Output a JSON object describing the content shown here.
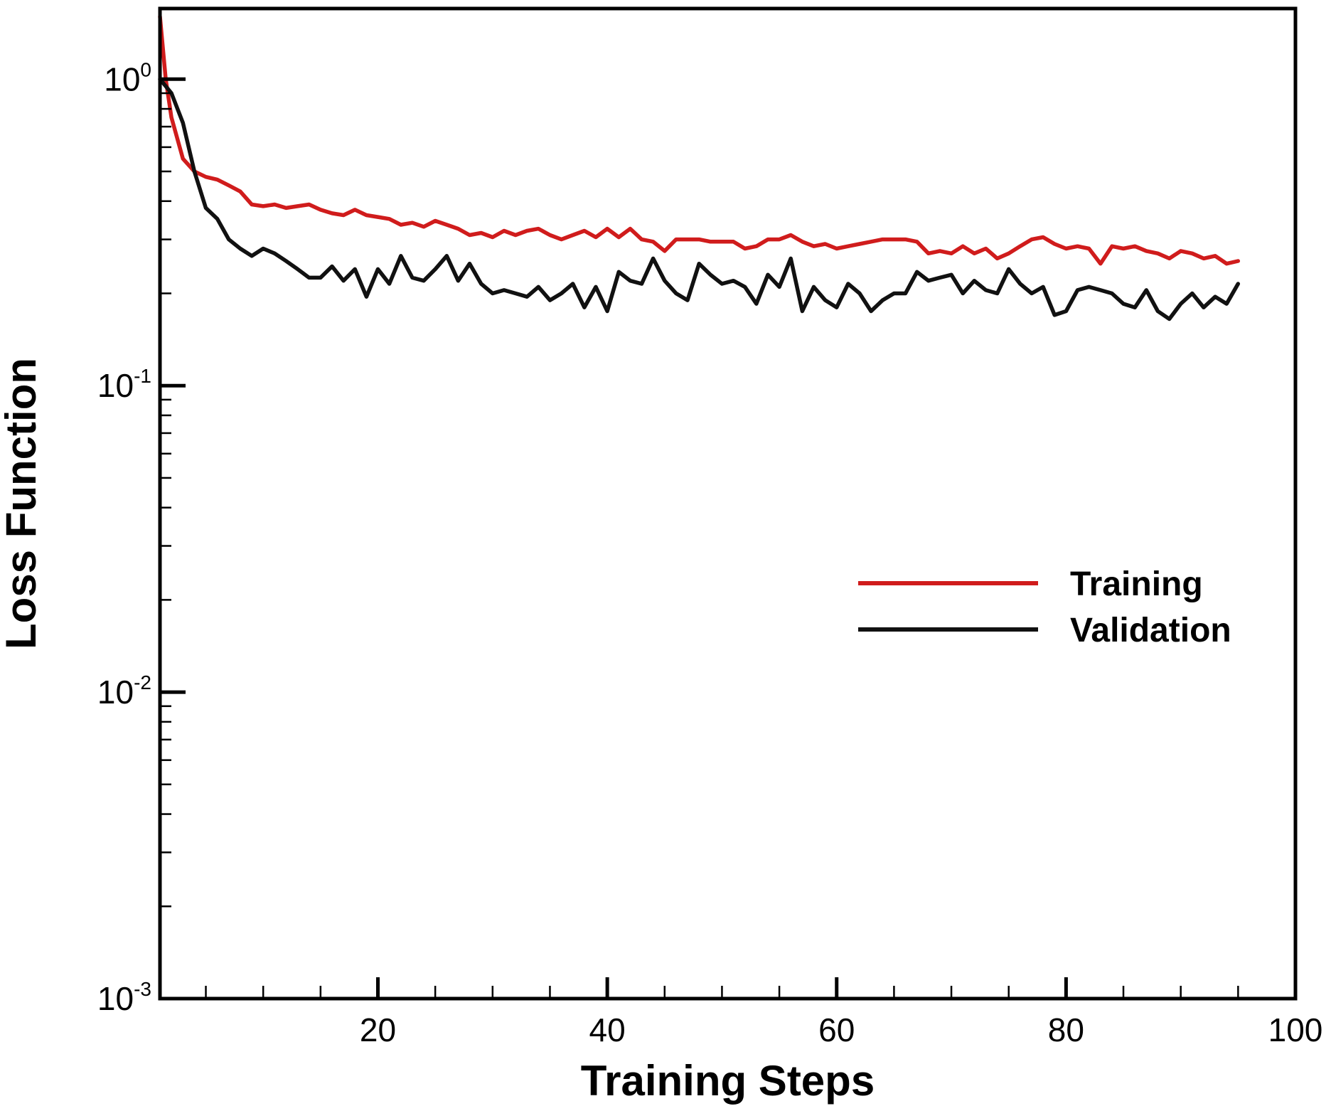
{
  "chart_data": {
    "type": "line",
    "xlabel": "Training Steps",
    "ylabel": "Loss Function",
    "xlim": [
      1,
      100
    ],
    "ylim": [
      0.001,
      1.7
    ],
    "y_scale": "log",
    "grid": false,
    "legend_position": "center-right",
    "x_ticks": [
      {
        "value": 20,
        "label": "20"
      },
      {
        "value": 40,
        "label": "40"
      },
      {
        "value": 60,
        "label": "60"
      },
      {
        "value": 80,
        "label": "80"
      },
      {
        "value": 100,
        "label": "100"
      }
    ],
    "y_ticks": [
      {
        "value": 1,
        "base": "10",
        "exp": "0"
      },
      {
        "value": 0.1,
        "base": "10",
        "exp": "-1"
      },
      {
        "value": 0.01,
        "base": "10",
        "exp": "-2"
      },
      {
        "value": 0.001,
        "base": "10",
        "exp": "-3"
      }
    ],
    "series": [
      {
        "name": "Training",
        "color": "#d01c1c",
        "x": [
          1,
          1.5,
          2,
          3,
          4,
          5,
          6,
          7,
          8,
          9,
          10,
          11,
          12,
          13,
          14,
          15,
          16,
          17,
          18,
          19,
          20,
          21,
          22,
          23,
          24,
          25,
          26,
          27,
          28,
          29,
          30,
          31,
          32,
          33,
          34,
          35,
          36,
          37,
          38,
          39,
          40,
          41,
          42,
          43,
          44,
          45,
          46,
          47,
          48,
          49,
          50,
          51,
          52,
          53,
          54,
          55,
          56,
          57,
          58,
          59,
          60,
          61,
          62,
          63,
          64,
          65,
          66,
          67,
          68,
          69,
          70,
          71,
          72,
          73,
          74,
          75,
          76,
          77,
          78,
          79,
          80,
          81,
          82,
          83,
          84,
          85,
          86,
          87,
          88,
          89,
          90,
          91,
          92,
          93,
          94,
          95
        ],
        "y": [
          1.6,
          1.0,
          0.75,
          0.55,
          0.5,
          0.48,
          0.47,
          0.45,
          0.43,
          0.39,
          0.385,
          0.39,
          0.38,
          0.385,
          0.39,
          0.375,
          0.365,
          0.36,
          0.375,
          0.36,
          0.355,
          0.35,
          0.335,
          0.34,
          0.33,
          0.345,
          0.335,
          0.325,
          0.31,
          0.315,
          0.305,
          0.32,
          0.31,
          0.32,
          0.325,
          0.31,
          0.3,
          0.31,
          0.32,
          0.305,
          0.325,
          0.305,
          0.325,
          0.3,
          0.295,
          0.275,
          0.3,
          0.3,
          0.3,
          0.295,
          0.295,
          0.295,
          0.28,
          0.285,
          0.3,
          0.3,
          0.31,
          0.295,
          0.285,
          0.29,
          0.28,
          0.285,
          0.29,
          0.295,
          0.3,
          0.3,
          0.3,
          0.295,
          0.27,
          0.275,
          0.27,
          0.285,
          0.27,
          0.28,
          0.26,
          0.27,
          0.285,
          0.3,
          0.305,
          0.29,
          0.28,
          0.285,
          0.28,
          0.25,
          0.285,
          0.28,
          0.285,
          0.275,
          0.27,
          0.26,
          0.275,
          0.27,
          0.26,
          0.265,
          0.25,
          0.255
        ]
      },
      {
        "name": "Validation",
        "color": "#111111",
        "x": [
          1,
          2,
          3,
          4,
          5,
          6,
          7,
          8,
          9,
          10,
          11,
          12,
          13,
          14,
          15,
          16,
          17,
          18,
          19,
          20,
          21,
          22,
          23,
          24,
          25,
          26,
          27,
          28,
          29,
          30,
          31,
          32,
          33,
          34,
          35,
          36,
          37,
          38,
          39,
          40,
          41,
          42,
          43,
          44,
          45,
          46,
          47,
          48,
          49,
          50,
          51,
          52,
          53,
          54,
          55,
          56,
          57,
          58,
          59,
          60,
          61,
          62,
          63,
          64,
          65,
          66,
          67,
          68,
          69,
          70,
          71,
          72,
          73,
          74,
          75,
          76,
          77,
          78,
          79,
          80,
          81,
          82,
          83,
          84,
          85,
          86,
          87,
          88,
          89,
          90,
          91,
          92,
          93,
          94,
          95
        ],
        "y": [
          1.0,
          0.9,
          0.72,
          0.5,
          0.38,
          0.35,
          0.3,
          0.28,
          0.265,
          0.28,
          0.27,
          0.255,
          0.24,
          0.225,
          0.225,
          0.245,
          0.22,
          0.24,
          0.195,
          0.24,
          0.215,
          0.265,
          0.225,
          0.22,
          0.24,
          0.265,
          0.22,
          0.25,
          0.215,
          0.2,
          0.205,
          0.2,
          0.195,
          0.21,
          0.19,
          0.2,
          0.215,
          0.18,
          0.21,
          0.175,
          0.235,
          0.22,
          0.215,
          0.26,
          0.22,
          0.2,
          0.19,
          0.25,
          0.23,
          0.215,
          0.22,
          0.21,
          0.185,
          0.23,
          0.21,
          0.26,
          0.175,
          0.21,
          0.19,
          0.18,
          0.215,
          0.2,
          0.175,
          0.19,
          0.2,
          0.2,
          0.235,
          0.22,
          0.225,
          0.23,
          0.2,
          0.22,
          0.205,
          0.2,
          0.24,
          0.215,
          0.2,
          0.21,
          0.17,
          0.175,
          0.205,
          0.21,
          0.205,
          0.2,
          0.185,
          0.18,
          0.205,
          0.175,
          0.165,
          0.185,
          0.2,
          0.18,
          0.195,
          0.185,
          0.215
        ]
      }
    ]
  }
}
